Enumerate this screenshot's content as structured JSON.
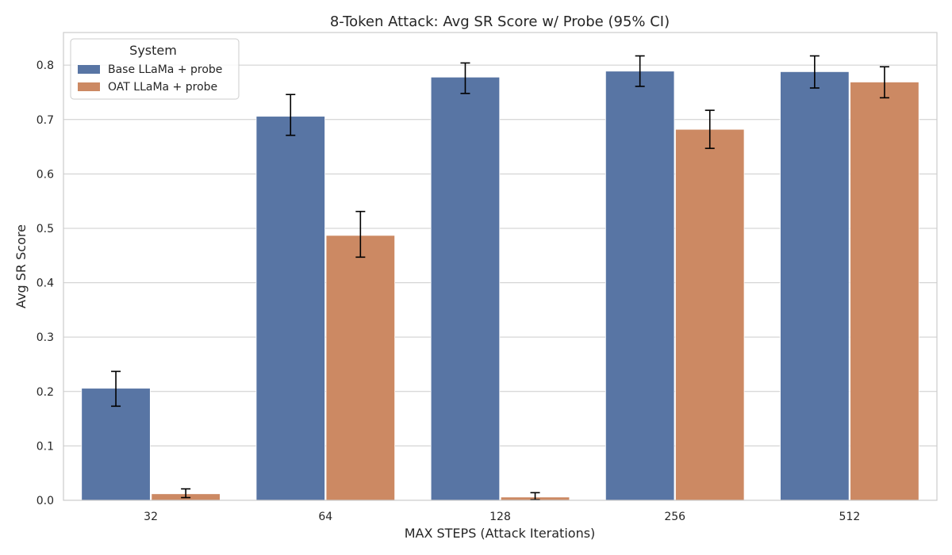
{
  "chart_data": {
    "type": "bar",
    "title": "8-Token Attack: Avg SR Score w/ Probe (95% CI)",
    "xlabel": "MAX STEPS (Attack Iterations)",
    "ylabel": "Avg SR Score",
    "categories": [
      "32",
      "64",
      "128",
      "256",
      "512"
    ],
    "ylim": [
      0,
      0.86
    ],
    "yticks": [
      0.0,
      0.1,
      0.2,
      0.3,
      0.4,
      0.5,
      0.6,
      0.7,
      0.8
    ],
    "ytick_labels": [
      "0.0",
      "0.1",
      "0.2",
      "0.3",
      "0.4",
      "0.5",
      "0.6",
      "0.7",
      "0.8"
    ],
    "grid": "horizontal",
    "legend": {
      "title": "System",
      "placement": "top-left"
    },
    "series": [
      {
        "name": "Base LLaMa + probe",
        "color": "#5875a4",
        "values": [
          0.206,
          0.706,
          0.778,
          0.789,
          0.788
        ],
        "ci_low": [
          0.173,
          0.671,
          0.748,
          0.761,
          0.758
        ],
        "ci_high": [
          0.237,
          0.746,
          0.804,
          0.817,
          0.817
        ]
      },
      {
        "name": "OAT LLaMa + probe",
        "color": "#cc8963",
        "values": [
          0.012,
          0.487,
          0.006,
          0.682,
          0.769
        ],
        "ci_low": [
          0.005,
          0.447,
          0.001,
          0.647,
          0.74
        ],
        "ci_high": [
          0.021,
          0.531,
          0.014,
          0.717,
          0.797
        ]
      }
    ]
  }
}
